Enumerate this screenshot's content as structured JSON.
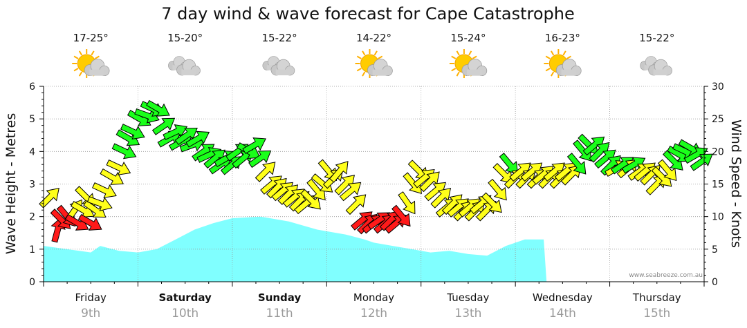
{
  "chart_data": {
    "type": "line",
    "title": "7 day wind & wave forecast for Cape Catastrophe",
    "ylabel": "Wave Height - Metres",
    "y2label": "Wind Speed - Knots",
    "ylim": [
      0,
      6
    ],
    "y2lim": [
      0,
      30
    ],
    "yticks": [
      "0",
      "1",
      "2",
      "3",
      "4",
      "5",
      "6"
    ],
    "y2ticks": [
      "0",
      "5",
      "10",
      "15",
      "20",
      "25",
      "30"
    ],
    "watermark": "www.seabreeze.com.au",
    "days": [
      {
        "name": "Friday",
        "date": "9th",
        "bold": false,
        "temp": "17-25°",
        "icon": "sun-cloud-icon"
      },
      {
        "name": "Saturday",
        "date": "10th",
        "bold": true,
        "temp": "15-20°",
        "icon": "cloud-icon"
      },
      {
        "name": "Sunday",
        "date": "11th",
        "bold": true,
        "temp": "15-22°",
        "icon": "cloud-icon"
      },
      {
        "name": "Monday",
        "date": "12th",
        "bold": false,
        "temp": "14-22°",
        "icon": "sun-cloud-icon"
      },
      {
        "name": "Tuesday",
        "date": "13th",
        "bold": false,
        "temp": "15-24°",
        "icon": "sun-cloud-icon"
      },
      {
        "name": "Wednesday",
        "date": "14th",
        "bold": false,
        "temp": "16-23°",
        "icon": "sun-cloud-icon"
      },
      {
        "name": "Thursday",
        "date": "15th",
        "bold": false,
        "temp": "15-22°",
        "icon": "cloud-icon"
      }
    ],
    "wave_series": {
      "name": "Wave Height (m)",
      "x_days": [
        0,
        0.5,
        0.6,
        0.8,
        1.0,
        1.2,
        1.4,
        1.6,
        1.8,
        2.0,
        2.3,
        2.6,
        2.9,
        3.2,
        3.4,
        3.5,
        3.7,
        3.9,
        4.1,
        4.3,
        4.5,
        4.7,
        4.9,
        5.1,
        5.2,
        5.3,
        5.33
      ],
      "values": [
        1.1,
        0.9,
        1.1,
        0.95,
        0.9,
        1.0,
        1.3,
        1.6,
        1.8,
        1.95,
        2.0,
        1.85,
        1.6,
        1.45,
        1.3,
        1.2,
        1.1,
        1.0,
        0.9,
        0.95,
        0.85,
        0.8,
        1.1,
        1.3,
        1.3,
        1.3,
        0.0
      ]
    },
    "wind_series": {
      "name": "Wind Speed (knots)",
      "colors": {
        "red": "#ff1a1a",
        "yellow": "#ffff1a",
        "green": "#1aff1a"
      },
      "points": [
        {
          "x": 0.07,
          "v": 13,
          "d": 225
        },
        {
          "x": 0.15,
          "v": 8,
          "d": 195
        },
        {
          "x": 0.19,
          "v": 9.5,
          "d": 315
        },
        {
          "x": 0.25,
          "v": 10,
          "d": 320
        },
        {
          "x": 0.33,
          "v": 11,
          "d": 215
        },
        {
          "x": 0.36,
          "v": 9,
          "d": 300
        },
        {
          "x": 0.42,
          "v": 11,
          "d": 300
        },
        {
          "x": 0.45,
          "v": 13,
          "d": 315
        },
        {
          "x": 0.5,
          "v": 9,
          "d": 300
        },
        {
          "x": 0.55,
          "v": 11,
          "d": 305
        },
        {
          "x": 0.6,
          "v": 12,
          "d": 290
        },
        {
          "x": 0.65,
          "v": 14,
          "d": 295
        },
        {
          "x": 0.73,
          "v": 16,
          "d": 300
        },
        {
          "x": 0.8,
          "v": 17.5,
          "d": 295
        },
        {
          "x": 0.86,
          "v": 20,
          "d": 295
        },
        {
          "x": 0.9,
          "v": 22,
          "d": 300
        },
        {
          "x": 0.95,
          "v": 23,
          "d": 295
        },
        {
          "x": 1.02,
          "v": 25,
          "d": 300
        },
        {
          "x": 1.1,
          "v": 25.5,
          "d": 290
        },
        {
          "x": 1.16,
          "v": 26.5,
          "d": 295
        },
        {
          "x": 1.22,
          "v": 26.5,
          "d": 300
        },
        {
          "x": 1.28,
          "v": 24,
          "d": 235
        },
        {
          "x": 1.34,
          "v": 22,
          "d": 240
        },
        {
          "x": 1.4,
          "v": 23,
          "d": 245
        },
        {
          "x": 1.46,
          "v": 21.5,
          "d": 240
        },
        {
          "x": 1.52,
          "v": 22.5,
          "d": 235
        },
        {
          "x": 1.58,
          "v": 21,
          "d": 250
        },
        {
          "x": 1.64,
          "v": 22,
          "d": 240
        },
        {
          "x": 1.7,
          "v": 20,
          "d": 235
        },
        {
          "x": 1.76,
          "v": 19.5,
          "d": 245
        },
        {
          "x": 1.82,
          "v": 19,
          "d": 230
        },
        {
          "x": 1.88,
          "v": 18,
          "d": 235
        },
        {
          "x": 1.94,
          "v": 19,
          "d": 240
        },
        {
          "x": 2.0,
          "v": 18,
          "d": 230
        },
        {
          "x": 2.06,
          "v": 20,
          "d": 235
        },
        {
          "x": 2.12,
          "v": 19,
          "d": 230
        },
        {
          "x": 2.18,
          "v": 20,
          "d": 300
        },
        {
          "x": 2.24,
          "v": 21,
          "d": 240
        },
        {
          "x": 2.3,
          "v": 19,
          "d": 235
        },
        {
          "x": 2.36,
          "v": 17,
          "d": 225
        },
        {
          "x": 2.42,
          "v": 15,
          "d": 230
        },
        {
          "x": 2.48,
          "v": 14.5,
          "d": 225
        },
        {
          "x": 2.54,
          "v": 14,
          "d": 230
        },
        {
          "x": 2.6,
          "v": 13.5,
          "d": 225
        },
        {
          "x": 2.66,
          "v": 13,
          "d": 230
        },
        {
          "x": 2.72,
          "v": 12.5,
          "d": 225
        },
        {
          "x": 2.78,
          "v": 12,
          "d": 230
        },
        {
          "x": 2.84,
          "v": 12.5,
          "d": 315
        },
        {
          "x": 2.9,
          "v": 14,
          "d": 320
        },
        {
          "x": 2.96,
          "v": 15,
          "d": 310
        },
        {
          "x": 3.02,
          "v": 17,
          "d": 320
        },
        {
          "x": 3.08,
          "v": 16,
          "d": 225
        },
        {
          "x": 3.14,
          "v": 17,
          "d": 220
        },
        {
          "x": 3.2,
          "v": 15,
          "d": 225
        },
        {
          "x": 3.26,
          "v": 14,
          "d": 230
        },
        {
          "x": 3.32,
          "v": 12,
          "d": 225
        },
        {
          "x": 3.38,
          "v": 9.5,
          "d": 230
        },
        {
          "x": 3.44,
          "v": 9,
          "d": 225
        },
        {
          "x": 3.5,
          "v": 9,
          "d": 230
        },
        {
          "x": 3.56,
          "v": 9.5,
          "d": 235
        },
        {
          "x": 3.62,
          "v": 9,
          "d": 230
        },
        {
          "x": 3.68,
          "v": 9.5,
          "d": 225
        },
        {
          "x": 3.74,
          "v": 9,
          "d": 230
        },
        {
          "x": 3.8,
          "v": 10,
          "d": 320
        },
        {
          "x": 3.86,
          "v": 12,
          "d": 325
        },
        {
          "x": 3.92,
          "v": 15,
          "d": 320
        },
        {
          "x": 3.98,
          "v": 17,
          "d": 315
        },
        {
          "x": 4.04,
          "v": 16,
          "d": 230
        },
        {
          "x": 4.1,
          "v": 15.5,
          "d": 225
        },
        {
          "x": 4.16,
          "v": 14,
          "d": 230
        },
        {
          "x": 4.22,
          "v": 13,
          "d": 225
        },
        {
          "x": 4.28,
          "v": 11.5,
          "d": 230
        },
        {
          "x": 4.34,
          "v": 12,
          "d": 225
        },
        {
          "x": 4.4,
          "v": 11.5,
          "d": 230
        },
        {
          "x": 4.46,
          "v": 11,
          "d": 225
        },
        {
          "x": 4.52,
          "v": 11.5,
          "d": 230
        },
        {
          "x": 4.58,
          "v": 11,
          "d": 225
        },
        {
          "x": 4.64,
          "v": 12,
          "d": 230
        },
        {
          "x": 4.7,
          "v": 11,
          "d": 225
        },
        {
          "x": 4.76,
          "v": 12,
          "d": 315
        },
        {
          "x": 4.82,
          "v": 14,
          "d": 320
        },
        {
          "x": 4.88,
          "v": 16.5,
          "d": 315
        },
        {
          "x": 4.94,
          "v": 18,
          "d": 320
        },
        {
          "x": 5.0,
          "v": 16,
          "d": 225
        },
        {
          "x": 5.06,
          "v": 17,
          "d": 230
        },
        {
          "x": 5.12,
          "v": 16,
          "d": 225
        },
        {
          "x": 5.18,
          "v": 17,
          "d": 230
        },
        {
          "x": 5.24,
          "v": 16,
          "d": 225
        },
        {
          "x": 5.3,
          "v": 16.5,
          "d": 230
        },
        {
          "x": 5.36,
          "v": 16,
          "d": 225
        },
        {
          "x": 5.42,
          "v": 17,
          "d": 230
        },
        {
          "x": 5.48,
          "v": 16,
          "d": 225
        },
        {
          "x": 5.54,
          "v": 17,
          "d": 230
        },
        {
          "x": 5.6,
          "v": 16.5,
          "d": 225
        },
        {
          "x": 5.66,
          "v": 18,
          "d": 320
        },
        {
          "x": 5.72,
          "v": 20,
          "d": 320
        },
        {
          "x": 5.78,
          "v": 21,
          "d": 315
        },
        {
          "x": 5.84,
          "v": 21,
          "d": 230
        },
        {
          "x": 5.9,
          "v": 20,
          "d": 225
        },
        {
          "x": 5.96,
          "v": 19,
          "d": 230
        },
        {
          "x": 6.02,
          "v": 18,
          "d": 225
        },
        {
          "x": 6.08,
          "v": 17.5,
          "d": 240
        },
        {
          "x": 6.14,
          "v": 18,
          "d": 235
        },
        {
          "x": 6.2,
          "v": 17.5,
          "d": 230
        },
        {
          "x": 6.26,
          "v": 18,
          "d": 240
        },
        {
          "x": 6.32,
          "v": 17,
          "d": 235
        },
        {
          "x": 6.38,
          "v": 17,
          "d": 230
        },
        {
          "x": 6.44,
          "v": 16.5,
          "d": 225
        },
        {
          "x": 6.5,
          "v": 15,
          "d": 225
        },
        {
          "x": 6.56,
          "v": 16,
          "d": 315
        },
        {
          "x": 6.62,
          "v": 17,
          "d": 320
        },
        {
          "x": 6.68,
          "v": 18.5,
          "d": 315
        },
        {
          "x": 6.74,
          "v": 19.5,
          "d": 300
        },
        {
          "x": 6.8,
          "v": 20,
          "d": 295
        },
        {
          "x": 6.86,
          "v": 20.5,
          "d": 300
        },
        {
          "x": 6.92,
          "v": 19.5,
          "d": 240
        },
        {
          "x": 6.98,
          "v": 18.5,
          "d": 235
        }
      ]
    }
  }
}
